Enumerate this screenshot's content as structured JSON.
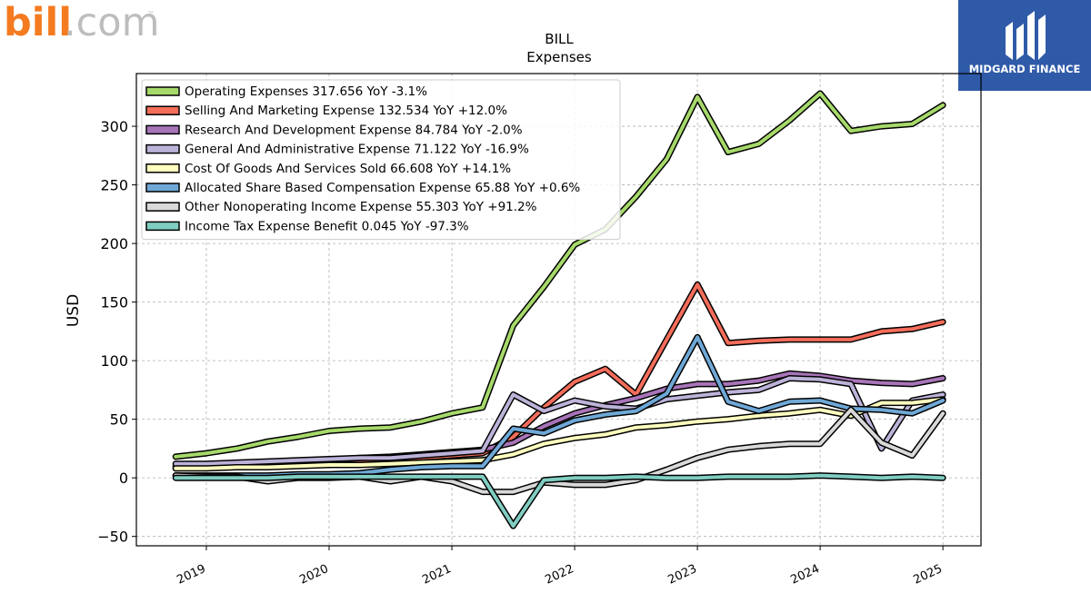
{
  "branding": {
    "bill_logo_dark": "bill",
    "bill_logo_light": ".com",
    "bill_logo_tm": "™",
    "partner_name": "MIDGARD FINANCE"
  },
  "colors": {
    "bill_orange": "#f47b20",
    "bill_gray": "#bdbdbd",
    "badge_blue": "#2f5aa8"
  },
  "chart_data": {
    "type": "line",
    "title": "BILL",
    "subtitle": "Expenses",
    "ylabel": "USD",
    "xlabel": "",
    "ylim": [
      -58,
      345
    ],
    "xlim": [
      2018.43,
      2025.31
    ],
    "yticks": [
      -50,
      0,
      50,
      100,
      150,
      200,
      250,
      300
    ],
    "ytick_labels": [
      "−50",
      "0",
      "50",
      "100",
      "150",
      "200",
      "250",
      "300"
    ],
    "xticks": [
      2019,
      2020,
      2021,
      2022,
      2023,
      2024,
      2025
    ],
    "xtick_labels": [
      "2019",
      "2020",
      "2021",
      "2022",
      "2023",
      "2024",
      "2025"
    ],
    "grid": true,
    "legend_position": "top-left",
    "x": [
      2018.75,
      2019.0,
      2019.25,
      2019.5,
      2019.75,
      2020.0,
      2020.25,
      2020.5,
      2020.75,
      2021.0,
      2021.25,
      2021.5,
      2021.75,
      2022.0,
      2022.25,
      2022.5,
      2022.75,
      2023.0,
      2023.25,
      2023.5,
      2023.75,
      2024.0,
      2024.25,
      2024.5,
      2024.75,
      2025.0
    ],
    "series": [
      {
        "name": "Operating Expenses  317.656 YoY -3.1%",
        "color": "#a6d96a",
        "values": [
          18,
          21,
          25,
          31,
          35,
          40,
          42,
          43,
          48,
          55,
          60,
          130,
          163,
          199,
          212,
          240,
          272,
          325,
          278,
          285,
          305,
          328,
          296,
          300,
          302,
          318
        ]
      },
      {
        "name": "Selling And Marketing Expense  132.534 YoY +12.0%",
        "color": "#f46d5b",
        "values": [
          8,
          9,
          10,
          11,
          12,
          13,
          14,
          15,
          17,
          19,
          21,
          35,
          60,
          82,
          93,
          71,
          118,
          165,
          115,
          117,
          118,
          118,
          118,
          125,
          127,
          133
        ]
      },
      {
        "name": "Research And Development Expense  84.784 YoY -2.0%",
        "color": "#a874b8",
        "values": [
          10,
          11,
          12,
          13,
          14,
          15,
          17,
          18,
          20,
          22,
          24,
          30,
          44,
          55,
          62,
          68,
          76,
          80,
          80,
          83,
          89,
          87,
          83,
          81,
          80,
          85
        ]
      },
      {
        "name": "General And Administrative Expense  71.122 YoY -16.9%",
        "color": "#bdb3d9",
        "values": [
          12,
          12,
          13,
          14,
          15,
          16,
          17,
          17,
          19,
          21,
          23,
          71,
          57,
          66,
          61,
          59,
          67,
          70,
          73,
          75,
          85,
          84,
          80,
          25,
          66,
          71
        ]
      },
      {
        "name": "Cost Of Goods And Services Sold  66.608 YoY +14.1%",
        "color": "#ffffbf",
        "values": [
          8,
          8,
          9,
          9,
          10,
          11,
          11,
          12,
          13,
          14,
          15,
          20,
          29,
          34,
          37,
          43,
          45,
          48,
          50,
          53,
          55,
          58,
          53,
          64,
          64,
          67
        ]
      },
      {
        "name": "Allocated Share Based Compensation Expense  65.88 YoY +0.6%",
        "color": "#6fa8d6",
        "values": [
          2,
          2,
          2,
          2,
          3,
          3,
          4,
          7,
          9,
          10,
          10,
          42,
          38,
          49,
          54,
          57,
          72,
          120,
          65,
          57,
          65,
          66,
          59,
          58,
          55,
          66
        ]
      },
      {
        "name": "Other Nonoperating Income Expense  55.303 YoY +91.2%",
        "color": "#d9d9d9",
        "values": [
          2,
          1,
          1,
          -3,
          0,
          0,
          1,
          -3,
          1,
          -3,
          -12,
          -12,
          -4,
          -6,
          -6,
          -2,
          7,
          17,
          24,
          27,
          29,
          29,
          58,
          30,
          19,
          55
        ]
      },
      {
        "name": "Income Tax Expense Benefit  0.045 YoY -97.3%",
        "color": "#80cdc1",
        "values": [
          0,
          0,
          0,
          0,
          1,
          1,
          1,
          1,
          1,
          1,
          1,
          -41,
          -2,
          0,
          0,
          1,
          0,
          0,
          1,
          1,
          1,
          2,
          1,
          0,
          1,
          0
        ]
      }
    ]
  }
}
